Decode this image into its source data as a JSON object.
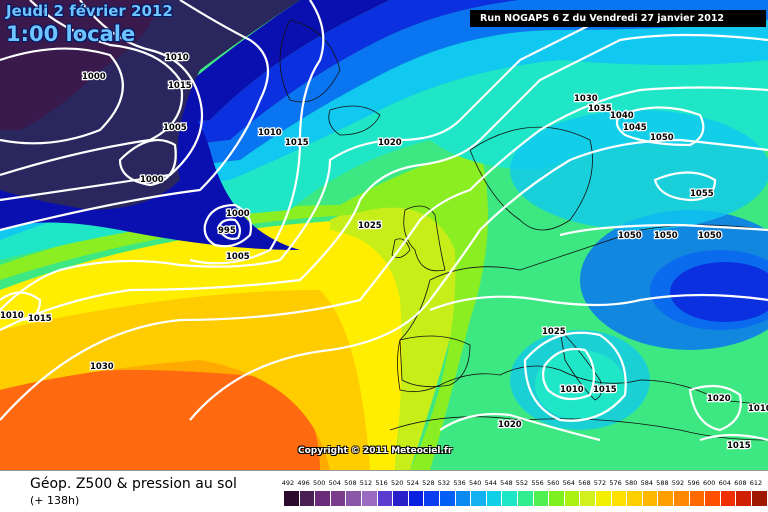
{
  "header": {
    "date_line": "Jeudi 2 février 2012",
    "time_line": "1:00 locale",
    "run_banner": "Run NOGAPS 6 Z du Vendredi 27 janvier 2012"
  },
  "copyright": "Copyright © 2011 Meteociel.fr",
  "legend": {
    "title": "Géop. Z500 & pression au sol",
    "subtitle": "(+ 138h)",
    "scale_values": [
      492,
      496,
      500,
      504,
      508,
      512,
      516,
      520,
      524,
      528,
      532,
      536,
      540,
      544,
      548,
      552,
      556,
      560,
      564,
      568,
      572,
      576,
      580,
      584,
      588,
      592,
      596,
      600,
      604,
      608,
      612
    ],
    "scale_colors": [
      "#2b0a2e",
      "#4a1f55",
      "#6a2c7a",
      "#7a3c8a",
      "#8c56a8",
      "#9a6bc0",
      "#5a3cd0",
      "#2a1fc8",
      "#0a20e0",
      "#0a3cf0",
      "#0060f5",
      "#0a8af0",
      "#15b0f0",
      "#10d0e8",
      "#20e6c8",
      "#30ee90",
      "#4ff050",
      "#7ef020",
      "#aaf010",
      "#d2f020",
      "#f2f000",
      "#ffe000",
      "#ffd000",
      "#ffb800",
      "#ffa000",
      "#ff8800",
      "#ff6a00",
      "#ff5000",
      "#f03000",
      "#d02000",
      "#a01800"
    ]
  },
  "map": {
    "colors": {
      "dark_purple": "#3a1a4d",
      "navy": "#29275e",
      "deep_blue": "#0a10b0",
      "blue": "#0a30e0",
      "light_blue": "#0a75f0",
      "cyan": "#10c8f0",
      "teal": "#20e6c8",
      "green": "#3de882",
      "lime": "#8aee22",
      "yellow_green": "#c8ee1a",
      "yellow": "#ffee00",
      "gold": "#ffcc00",
      "orange": "#ffaa00",
      "dark_orange": "#ff8a00",
      "red_orange": "#ff6a10"
    },
    "isobar_labels": [
      "1010",
      "1015",
      "1000",
      "1005",
      "1000",
      "1010",
      "1015",
      "1000",
      "995",
      "1005",
      "1020",
      "1025",
      "1030",
      "1035",
      "1040",
      "1045",
      "1050",
      "1055",
      "1050",
      "1050",
      "1050",
      "1010",
      "1015",
      "1030",
      "1025",
      "1010",
      "1015",
      "1020",
      "1020",
      "1015",
      "1010"
    ]
  }
}
